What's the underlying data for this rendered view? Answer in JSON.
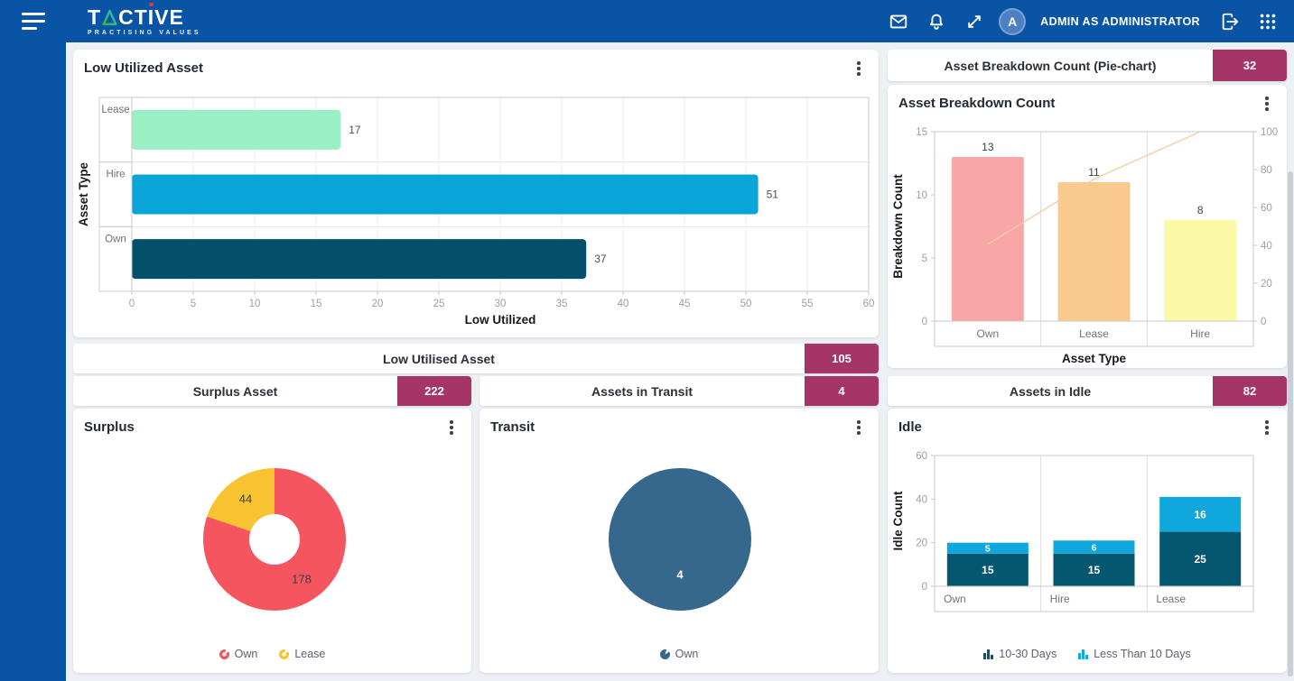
{
  "nav": {
    "logo_title": "TACTIVE",
    "logo_subtitle": "PRACTISING VALUES",
    "avatar_letter": "A",
    "user_label": "ADMIN AS ADMINISTRATOR"
  },
  "banners": {
    "low_utilised": {
      "label": "Low Utilised Asset",
      "count": "105"
    },
    "surplus": {
      "label": "Surplus Asset",
      "count": "222"
    },
    "transit": {
      "label": "Assets in Transit",
      "count": "4"
    },
    "breakdown": {
      "label": "Asset Breakdown Count (Pie-chart)",
      "count": "32"
    },
    "idle": {
      "label": "Assets in Idle",
      "count": "82"
    }
  },
  "badge_color": "#a53567",
  "cards": {
    "low_utilized": {
      "title": "Low Utilized Asset",
      "chart_data": {
        "type": "bar",
        "orientation": "horizontal",
        "categories": [
          "Lease",
          "Hire",
          "Own"
        ],
        "values": [
          17,
          51,
          37
        ],
        "bar_colors": [
          "#98f0c3",
          "#09a5d9",
          "#03506c"
        ],
        "xlabel": "Low Utilized",
        "ylabel": "Asset Type",
        "xlim": [
          0,
          60
        ],
        "xtick_step": 5,
        "grid": true
      }
    },
    "surplus": {
      "title": "Surplus",
      "chart_data": {
        "type": "pie",
        "donut": true,
        "segments": [
          {
            "label": "Own",
            "value": 178,
            "color": "#f4555f"
          },
          {
            "label": "Lease",
            "value": 44,
            "color": "#f9c231"
          }
        ],
        "legend_position": "bottom"
      }
    },
    "transit": {
      "title": "Transit",
      "chart_data": {
        "type": "pie",
        "donut": false,
        "segments": [
          {
            "label": "Own",
            "value": 4,
            "color": "#36688e"
          }
        ],
        "legend_position": "bottom"
      }
    },
    "breakdown": {
      "title": "Asset Breakdown Count",
      "chart_data": {
        "type": "bar",
        "categories": [
          "Own",
          "Lease",
          "Hire"
        ],
        "values": [
          13,
          11,
          8
        ],
        "bar_colors": [
          "#f8a6a6",
          "#f9c98e",
          "#fafaa6"
        ],
        "line": {
          "name": "cumulative-percent",
          "values": [
            40.6,
            75,
            100
          ],
          "color": "#f2cda0",
          "axis": "right"
        },
        "xlabel": "Asset Type",
        "ylabel": "Breakdown Count",
        "ylim": [
          0,
          15
        ],
        "yticks": [
          0,
          5,
          10,
          15
        ],
        "y2lim": [
          0,
          100
        ],
        "y2ticks": [
          0,
          20,
          40,
          60,
          80,
          100
        ]
      }
    },
    "idle": {
      "title": "Idle",
      "chart_data": {
        "type": "stacked-bar",
        "categories": [
          "Own",
          "Hire",
          "Lease"
        ],
        "series": [
          {
            "name": "10-30 Days",
            "color": "#05576f",
            "values": [
              15,
              15,
              25
            ]
          },
          {
            "name": "Less Than 10 Days",
            "color": "#10a8dc",
            "values": [
              5,
              6,
              16
            ]
          }
        ],
        "ylabel": "Idle Count",
        "ylim": [
          0,
          60
        ],
        "yticks": [
          0,
          20,
          40,
          60
        ],
        "legend_position": "bottom"
      }
    }
  }
}
